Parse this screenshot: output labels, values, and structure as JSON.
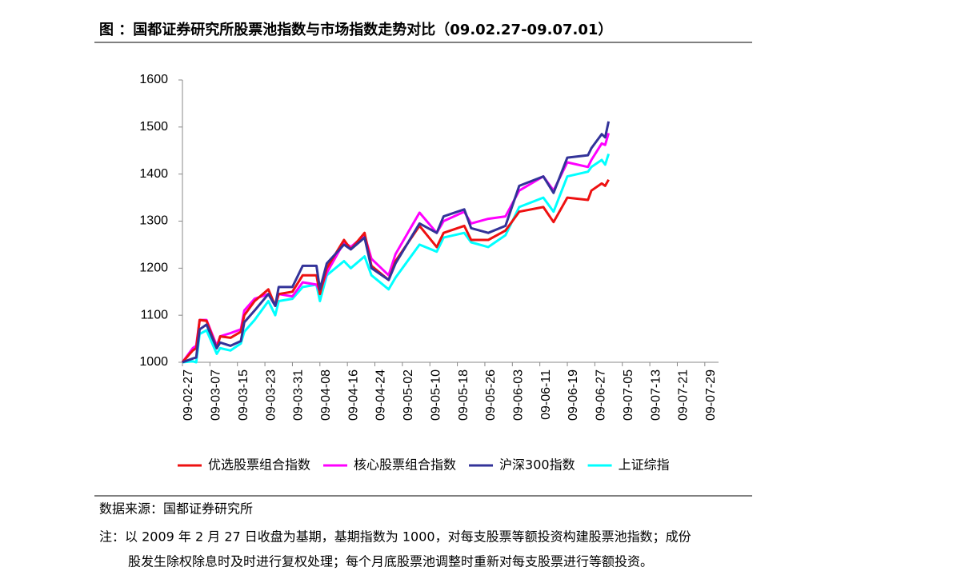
{
  "chart_data": {
    "type": "line",
    "title": "图 ：国都证券研究所股票池指数与市场指数走势对比（09.02.27-09.07.01）",
    "x": [
      "09-02-27",
      "09-03-02",
      "09-03-03",
      "09-03-04",
      "09-03-06",
      "09-03-09",
      "09-03-10",
      "09-03-13",
      "09-03-16",
      "09-03-17",
      "09-03-20",
      "09-03-24",
      "09-03-26",
      "09-03-27",
      "09-03-31",
      "09-04-03",
      "09-04-07",
      "09-04-08",
      "09-04-10",
      "09-04-15",
      "09-04-17",
      "09-04-21",
      "09-04-23",
      "09-04-28",
      "09-04-30",
      "09-05-07",
      "09-05-12",
      "09-05-14",
      "09-05-20",
      "09-05-22",
      "09-05-27",
      "09-06-01",
      "09-06-05",
      "09-06-12",
      "09-06-15",
      "09-06-19",
      "09-06-25",
      "09-06-26",
      "09-06-29",
      "09-06-30",
      "09-07-01"
    ],
    "series": [
      {
        "name": "优选股票组合指数",
        "color": "#ee1111",
        "values": [
          1000,
          1025,
          1030,
          1090,
          1088,
          1030,
          1055,
          1052,
          1065,
          1100,
          1130,
          1155,
          1120,
          1145,
          1150,
          1185,
          1185,
          1145,
          1200,
          1260,
          1240,
          1275,
          1205,
          1175,
          1215,
          1290,
          1245,
          1275,
          1290,
          1260,
          1260,
          1280,
          1320,
          1330,
          1298,
          1350,
          1345,
          1365,
          1380,
          1375,
          1388
        ]
      },
      {
        "name": "核心股票组合指数",
        "color": "#ff00ff",
        "values": [
          1000,
          1030,
          1035,
          1090,
          1090,
          1035,
          1055,
          1062,
          1070,
          1110,
          1135,
          1145,
          1120,
          1145,
          1140,
          1170,
          1165,
          1150,
          1190,
          1255,
          1245,
          1270,
          1220,
          1185,
          1230,
          1318,
          1275,
          1300,
          1320,
          1295,
          1305,
          1310,
          1365,
          1395,
          1365,
          1425,
          1415,
          1430,
          1465,
          1462,
          1487
        ]
      },
      {
        "name": "沪深300指数",
        "color": "#333399",
        "values": [
          1000,
          1008,
          1010,
          1070,
          1080,
          1030,
          1042,
          1035,
          1045,
          1085,
          1110,
          1145,
          1120,
          1160,
          1160,
          1205,
          1205,
          1155,
          1210,
          1250,
          1240,
          1265,
          1200,
          1175,
          1210,
          1295,
          1275,
          1310,
          1325,
          1285,
          1275,
          1290,
          1375,
          1395,
          1360,
          1435,
          1440,
          1455,
          1485,
          1478,
          1512
        ]
      },
      {
        "name": "上证综指",
        "color": "#00ffff",
        "values": [
          1000,
          1002,
          1000,
          1060,
          1068,
          1018,
          1030,
          1025,
          1040,
          1065,
          1090,
          1130,
          1100,
          1130,
          1135,
          1160,
          1165,
          1130,
          1185,
          1215,
          1200,
          1225,
          1185,
          1155,
          1180,
          1250,
          1235,
          1265,
          1275,
          1255,
          1245,
          1270,
          1330,
          1350,
          1320,
          1395,
          1405,
          1415,
          1430,
          1420,
          1443
        ]
      }
    ],
    "xlim": [
      "09-02-27",
      "09-08-02"
    ],
    "xticks": [
      "09-02-27",
      "09-03-07",
      "09-03-15",
      "09-03-23",
      "09-03-31",
      "09-04-08",
      "09-04-16",
      "09-04-24",
      "09-05-02",
      "09-05-10",
      "09-05-18",
      "09-05-26",
      "09-06-03",
      "09-06-11",
      "09-06-19",
      "09-06-27",
      "09-07-05",
      "09-07-13",
      "09-07-21",
      "09-07-29"
    ],
    "ylim": [
      1000,
      1600
    ],
    "yticks": [
      1000,
      1100,
      1200,
      1300,
      1400,
      1500,
      1600
    ],
    "grid": false,
    "legend": "bottom"
  },
  "footer": {
    "source": "数据来源：国都证券研究所",
    "note": [
      "注：以 2009 年 2 月 27 日收盘为基期，基期指数为 1000，对每支股票等额投资构建股票池指数；成份",
      "股发生除权除息时及时进行复权处理；每个月底股票池调整时重新对每支股票进行等额投资。"
    ]
  }
}
